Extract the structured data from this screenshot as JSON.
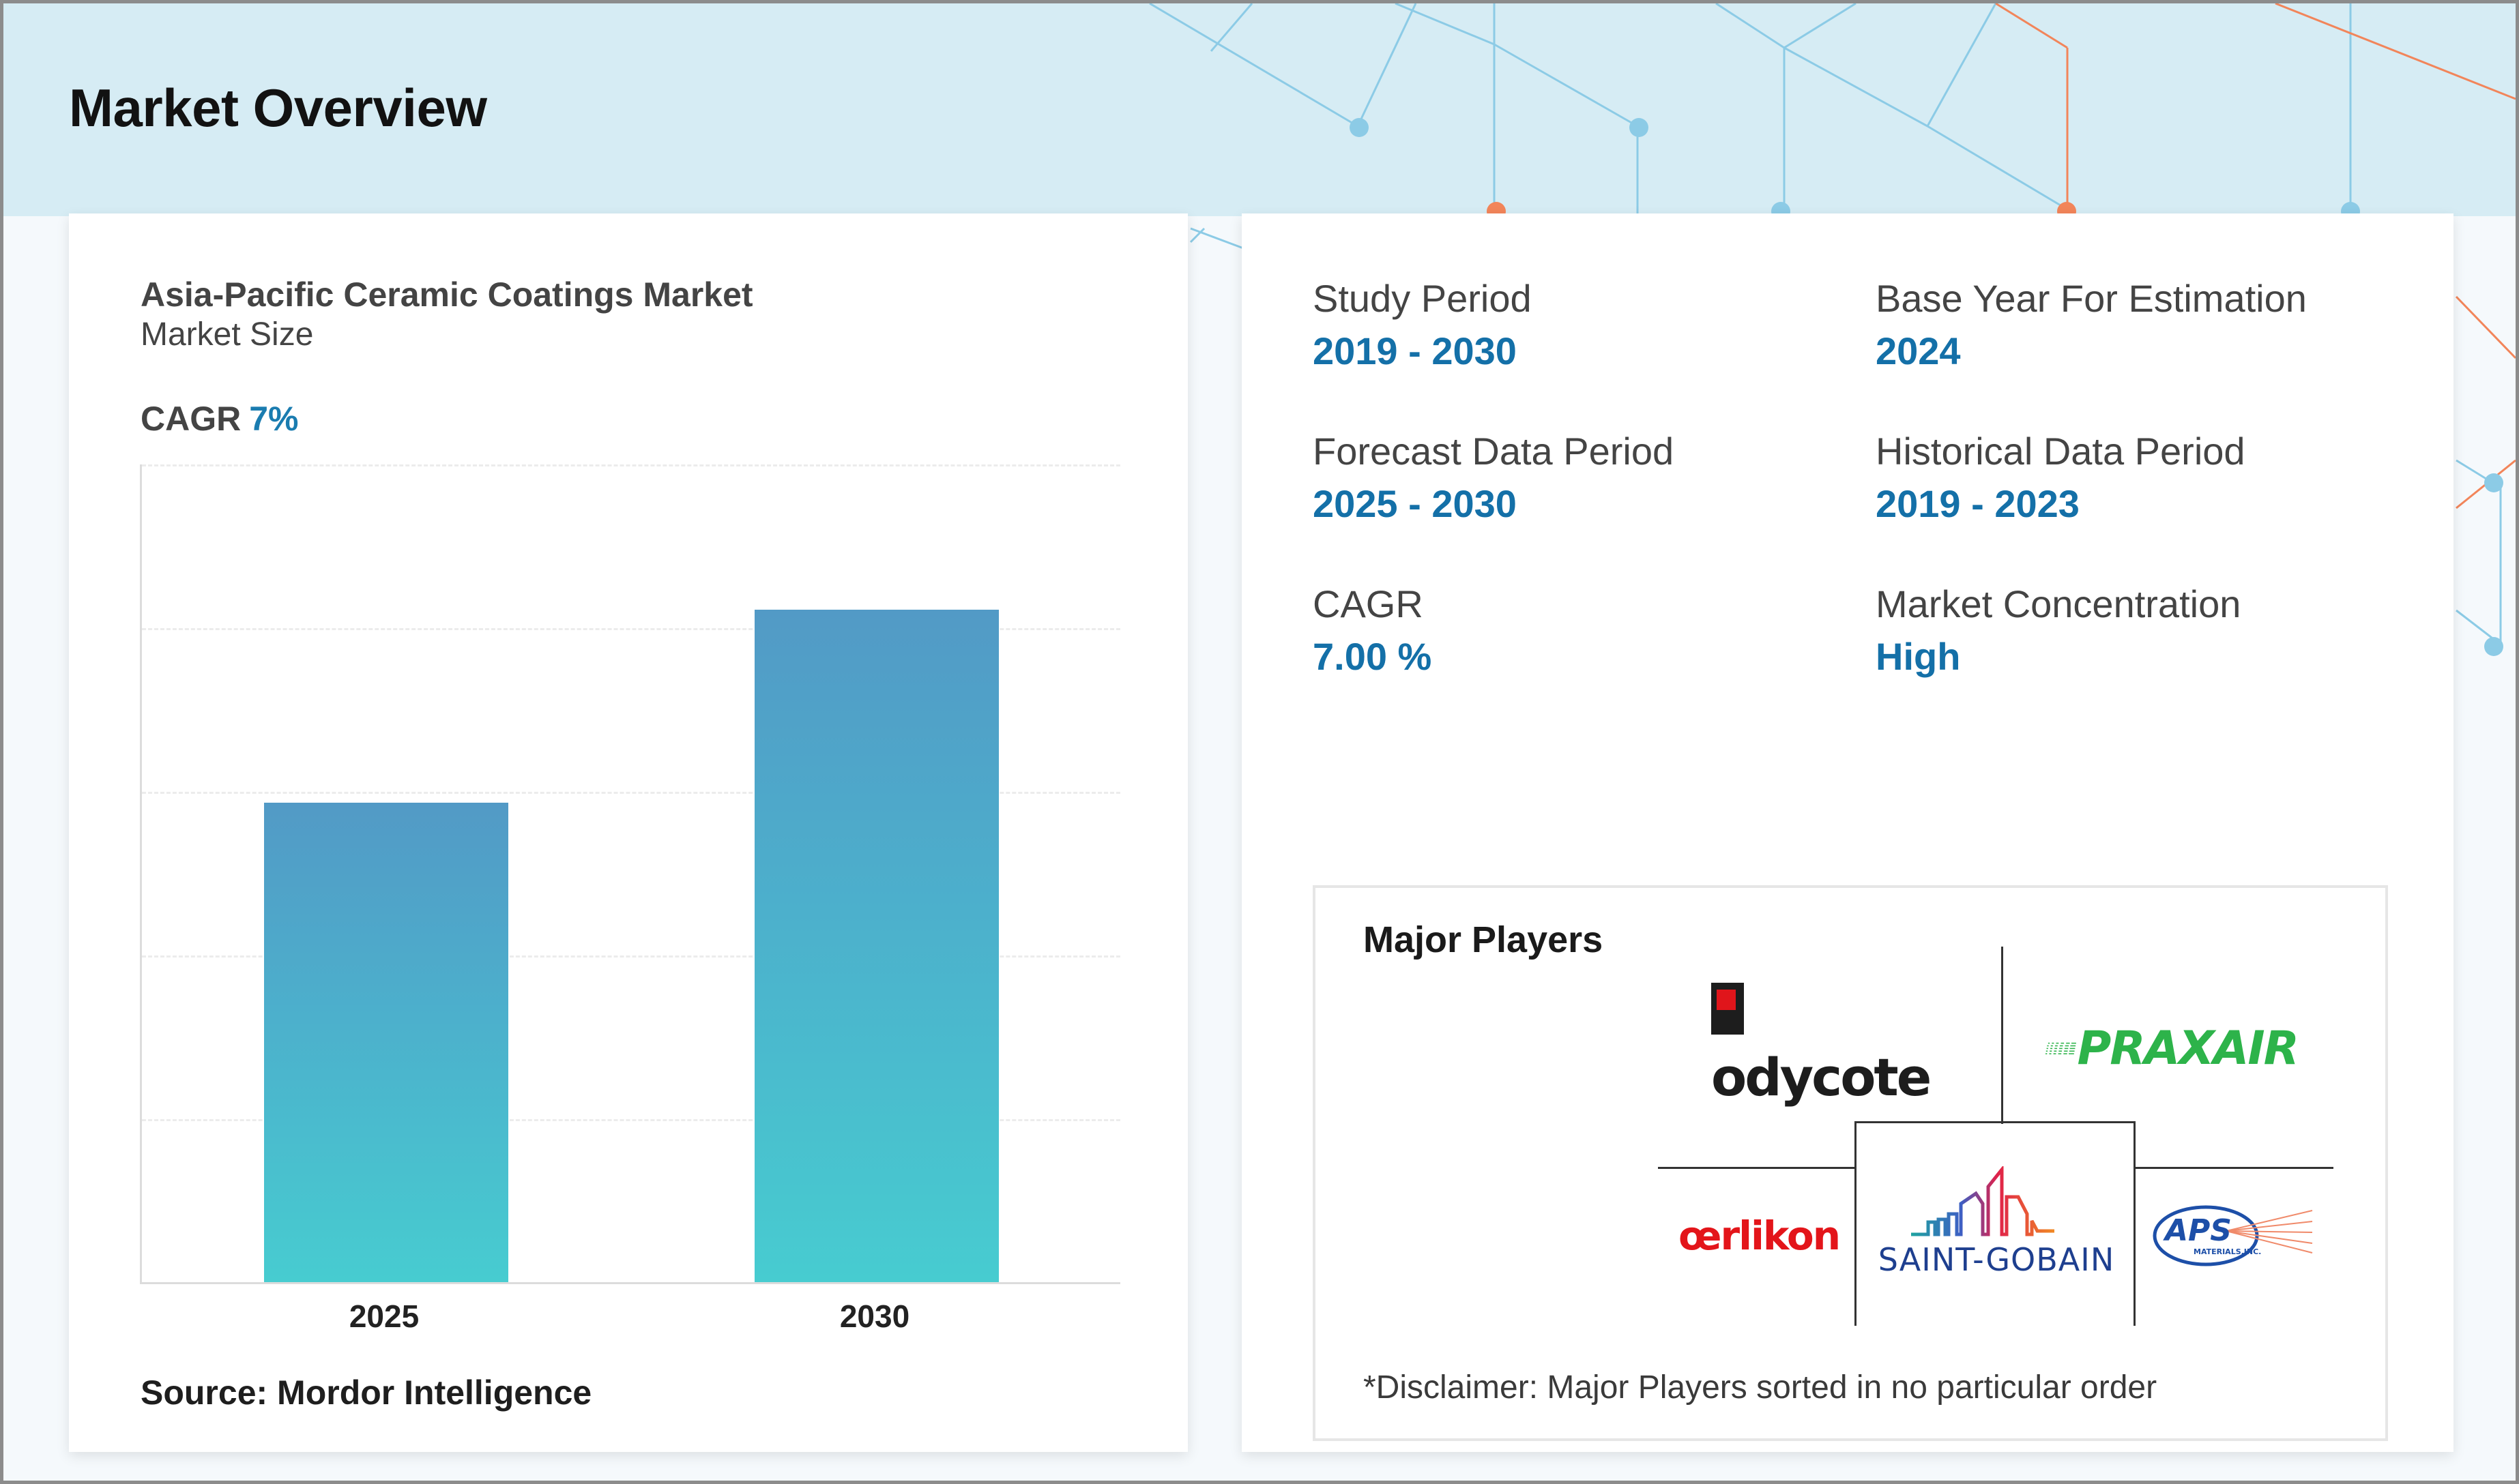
{
  "header": {
    "title": "Market Overview"
  },
  "chart_card": {
    "title": "Asia-Pacific Ceramic Coatings Market",
    "subtitle": "Market Size",
    "cagr_label": "CAGR",
    "cagr_value": "7%",
    "source": "Source: Mordor Intelligence"
  },
  "chart_data": {
    "type": "bar",
    "title": "Asia-Pacific Ceramic Coatings Market",
    "subtitle": "Market Size",
    "categories": [
      "2025",
      "2030"
    ],
    "values": [
      58.5,
      82
    ],
    "value_unit": "relative % of plot height (no y-axis values shown)",
    "xlabel": "",
    "ylabel": "",
    "ylim": [
      0,
      100
    ],
    "grid": true,
    "gridlines": 5,
    "legend": "none",
    "colors": {
      "bar_top": "#529ac6",
      "bar_bottom": "#47ccd0"
    },
    "annotations": [
      "CAGR 7%"
    ],
    "source": "Source: Mordor Intelligence"
  },
  "stats": [
    {
      "label": "Study Period",
      "value": "2019 - 2030"
    },
    {
      "label": "Base Year For Estimation",
      "value": "2024"
    },
    {
      "label": "Forecast Data Period",
      "value": "2025 - 2030"
    },
    {
      "label": "Historical Data Period",
      "value": "2019 - 2023"
    },
    {
      "label": "CAGR",
      "value": "7.00 %"
    },
    {
      "label": "Market Concentration",
      "value": "High"
    }
  ],
  "major_players": {
    "title": "Major Players",
    "players": [
      {
        "name": "Bodycote",
        "logo_text": "odycote",
        "logo_initial": "B"
      },
      {
        "name": "Praxair",
        "logo_text": "PRAXAIR"
      },
      {
        "name": "Oerlikon",
        "logo_text": "œrlikon"
      },
      {
        "name": "Saint-Gobain",
        "logo_text": "SAINT-GOBAIN"
      },
      {
        "name": "APS Materials, Inc.",
        "logo_text": "APS",
        "logo_subtext": "MATERIALS,INC."
      }
    ],
    "disclaimer": "*Disclaimer: Major Players sorted in no particular order"
  },
  "colors": {
    "accent_blue": "#1470a8",
    "header_bg": "#d6ecf4",
    "network_blue": "#8ccbe6",
    "network_orange": "#f2855a"
  }
}
